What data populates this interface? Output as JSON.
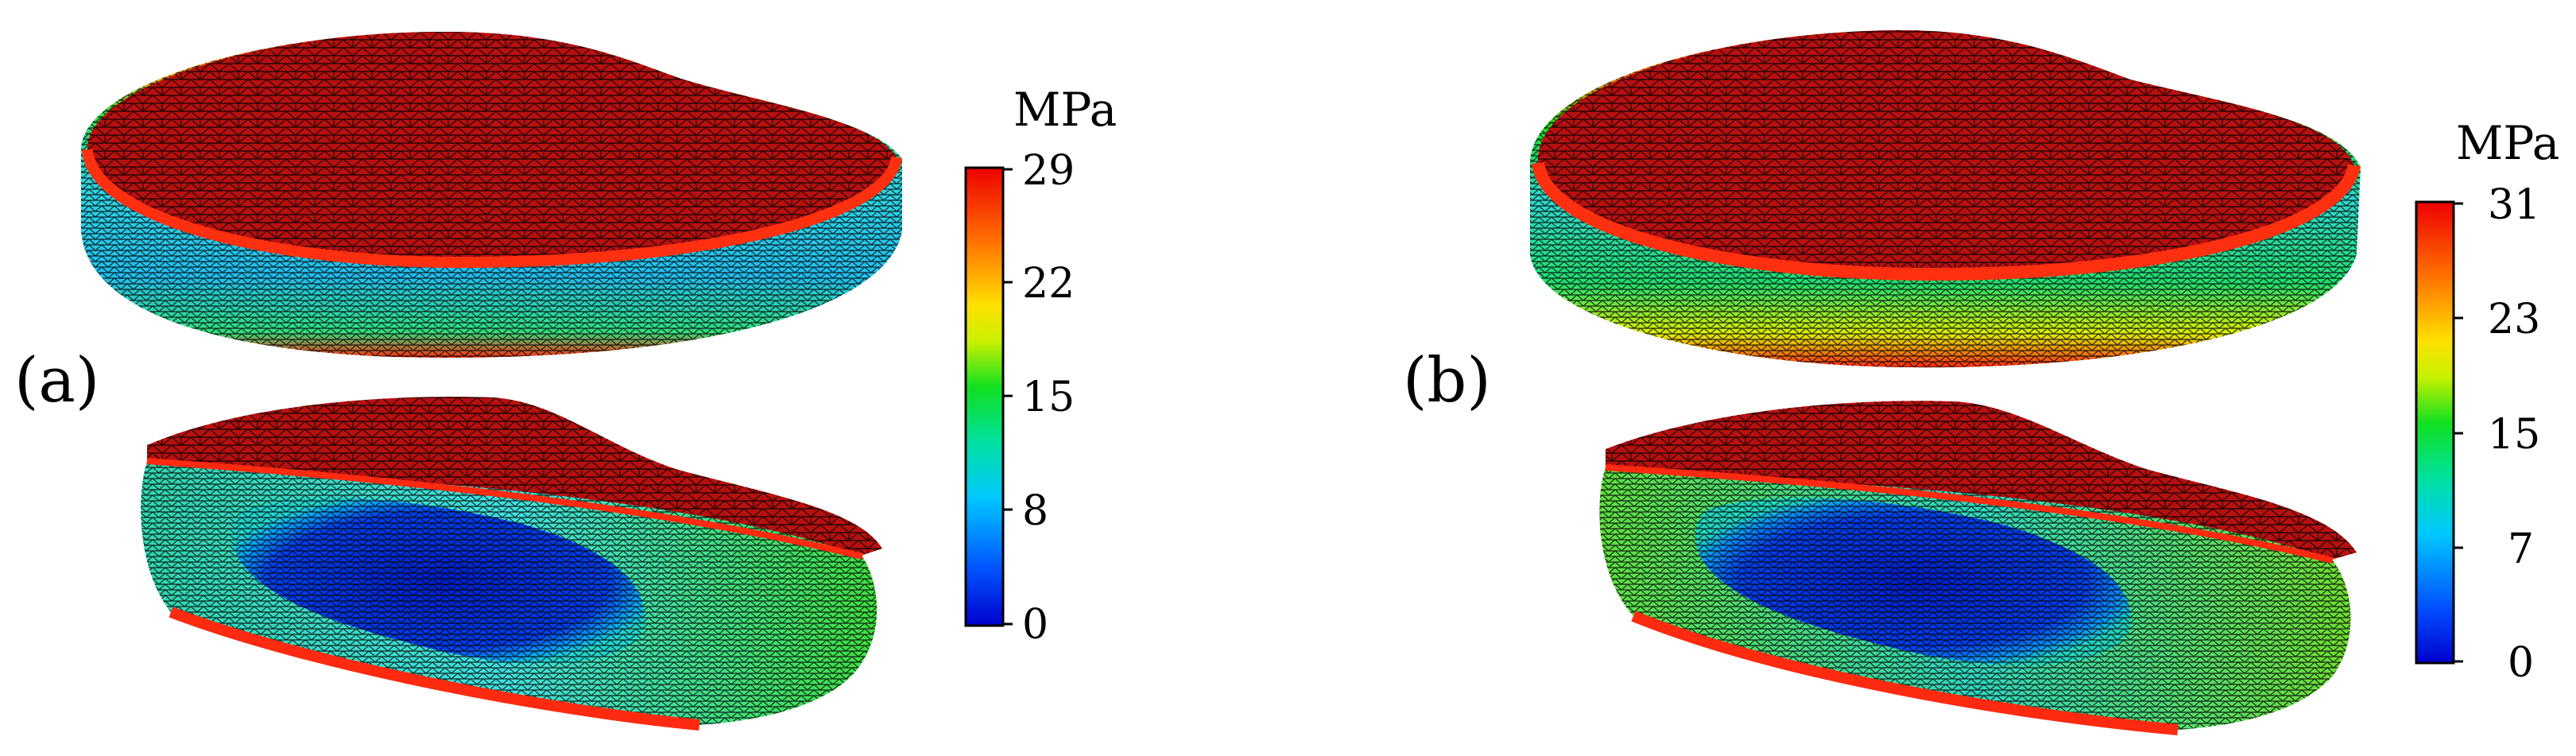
{
  "panels": [
    {
      "label": "(a)",
      "colorbar": {
        "unit": "MPa",
        "ticks": [
          "29",
          "22",
          "15",
          "8",
          "0"
        ]
      }
    },
    {
      "label": "(b)",
      "colorbar": {
        "unit": "MPa",
        "ticks": [
          "31",
          "23",
          "15",
          "7",
          "0"
        ]
      }
    }
  ],
  "colormap": {
    "name": "jet",
    "stops": [
      "#0000cc",
      "#0050ff",
      "#00c8ff",
      "#00e0a0",
      "#10e020",
      "#c8f000",
      "#ffe000",
      "#ff7000",
      "#ee0000"
    ]
  },
  "mesh_colors": {
    "top_face": "#b81010",
    "edge": "#ff2a10",
    "ring": "#30d0d8",
    "core": "#0030dd",
    "mesh_line": "#000000"
  }
}
